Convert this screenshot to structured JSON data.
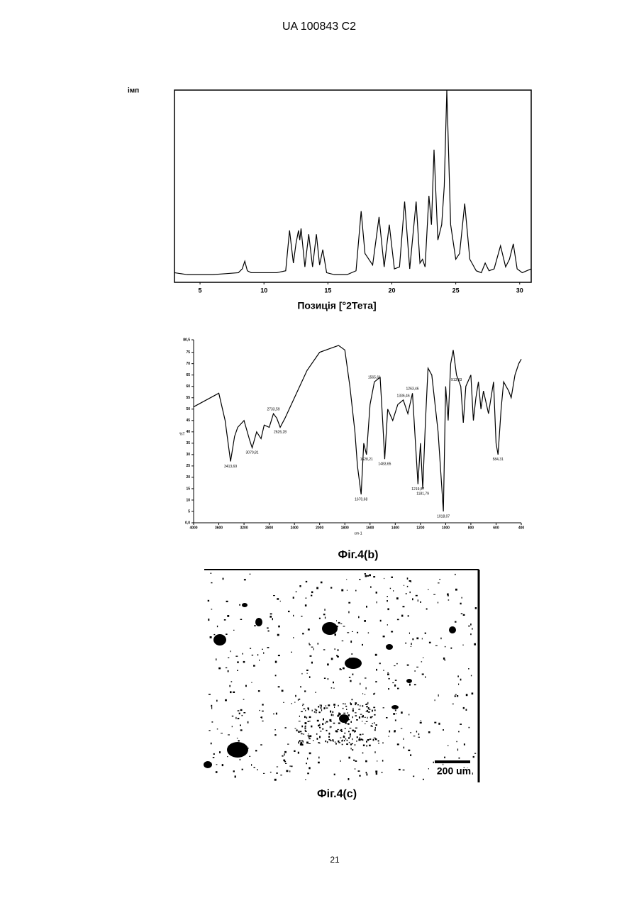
{
  "header": {
    "title": "UA 100843 C2"
  },
  "chart_data": [
    {
      "type": "line",
      "ylabel": "імп",
      "xlabel": "Позиція [°2Тета]",
      "color": "#000000",
      "x": [
        3,
        4,
        5,
        6,
        7,
        8,
        8.3,
        8.5,
        8.7,
        9,
        10,
        11,
        11.7,
        12.0,
        12.3,
        12.5,
        12.7,
        12.8,
        12.9,
        13.2,
        13.5,
        13.8,
        14.1,
        14.35,
        14.6,
        14.9,
        15.5,
        16.5,
        17.2,
        17.6,
        17.9,
        18.5,
        19.0,
        19.4,
        19.8,
        20.2,
        20.6,
        21.0,
        21.4,
        21.9,
        22.2,
        22.4,
        22.6,
        22.9,
        23.1,
        23.3,
        23.6,
        23.9,
        24.1,
        24.3,
        24.6,
        25.0,
        25.3,
        25.7,
        26.1,
        26.6,
        27.0,
        27.3,
        27.6,
        28.0,
        28.5,
        28.9,
        29.2,
        29.5,
        29.8,
        30.2,
        30.9
      ],
      "values": [
        5,
        4,
        4,
        4,
        4.5,
        5,
        7,
        11,
        6,
        5,
        5,
        5,
        6,
        27,
        10,
        20,
        27,
        22,
        28,
        8,
        25,
        8,
        25,
        9,
        17,
        5,
        4,
        4,
        6,
        37,
        15,
        9,
        34,
        8,
        30,
        7,
        8,
        42,
        7,
        42,
        10,
        12,
        8,
        45,
        30,
        69,
        22,
        30,
        50,
        100,
        30,
        12,
        15,
        41,
        12,
        6,
        5,
        10,
        6,
        7,
        19,
        8,
        12,
        20,
        7,
        5,
        7
      ],
      "xlim": [
        3,
        30.9
      ],
      "ylim": [
        0,
        100
      ],
      "xticks": [
        5,
        10,
        15,
        20,
        25,
        30
      ]
    },
    {
      "type": "line",
      "ylabel": "%T",
      "xlabel": "cm-1",
      "caption": "Фіг.4(b)",
      "color": "#000000",
      "xscale": "split",
      "x": [
        4000,
        3800,
        3600,
        3500,
        3413.69,
        3350,
        3300,
        3200,
        3107,
        3070.81,
        3000,
        2930,
        2880,
        2800,
        2733.59,
        2680,
        2626.28,
        2550,
        2400,
        2200,
        2000,
        1900,
        1850,
        1800,
        1760,
        1720,
        1700,
        1670.68,
        1650,
        1628.21,
        1600,
        1565.61,
        1520,
        1500,
        1483.65,
        1460,
        1420,
        1380,
        1336.46,
        1300,
        1263.46,
        1219.87,
        1200,
        1181.79,
        1160,
        1140,
        1110,
        1080,
        1060,
        1018.07,
        1000,
        980,
        960,
        940,
        913.83,
        880,
        860,
        840,
        800,
        780,
        760,
        740,
        720,
        700,
        660,
        620,
        600,
        584.31,
        560,
        540,
        500,
        480,
        450,
        420,
        400
      ],
      "values": [
        51,
        54,
        57,
        45,
        27,
        38,
        42,
        45,
        36,
        33,
        40,
        37,
        43,
        42,
        48,
        46,
        42,
        46,
        55,
        67,
        75,
        77,
        78,
        76,
        60,
        40,
        25,
        12.5,
        35,
        30,
        52,
        62,
        64,
        45,
        28,
        50,
        45,
        52,
        54,
        48,
        57,
        17,
        35,
        15,
        45,
        68,
        65,
        50,
        40,
        5,
        60,
        45,
        70,
        76,
        65,
        60,
        44,
        60,
        65,
        45,
        55,
        62,
        50,
        58,
        48,
        62,
        35,
        30,
        50,
        62,
        58,
        55,
        65,
        70,
        72
      ],
      "xlim": [
        4000,
        400
      ],
      "ylim": [
        0,
        80.5
      ],
      "xticks": [
        4000,
        3600,
        3200,
        2800,
        2400,
        2000,
        1800,
        1600,
        1400,
        1200,
        1000,
        800,
        600,
        400
      ],
      "yticks": [
        {
          "value": 0,
          "label": "0,0"
        },
        5,
        10,
        15,
        20,
        25,
        30,
        35,
        40,
        45,
        50,
        55,
        60,
        65,
        70,
        75,
        {
          "value": 80.5,
          "label": "80,5"
        }
      ],
      "annotations": [
        {
          "label": "3413,69",
          "x": 3413.69
        },
        {
          "label": "3070,81",
          "x": 3070.81
        },
        {
          "label": "2733,59",
          "x": 2733.59
        },
        {
          "label": "2626,28",
          "x": 2626.28
        },
        {
          "label": "1670,68",
          "x": 1670.68
        },
        {
          "label": "1628,21",
          "x": 1628.21
        },
        {
          "label": "1565,61",
          "x": 1565.61
        },
        {
          "label": "1483,65",
          "x": 1483.65
        },
        {
          "label": "1336,46",
          "x": 1336.46
        },
        {
          "label": "1263,46",
          "x": 1263.46
        },
        {
          "label": "1219,87",
          "x": 1219.87
        },
        {
          "label": "1181,79",
          "x": 1181.79
        },
        {
          "label": "1018,07",
          "x": 1018.07
        },
        {
          "label": "913,83",
          "x": 913.83
        },
        {
          "label": "584,31",
          "x": 584.31
        }
      ]
    }
  ],
  "micrograph": {
    "scale_bar": "200 um",
    "caption": "Фіг.4(c)"
  },
  "footer": {
    "page": "21"
  }
}
